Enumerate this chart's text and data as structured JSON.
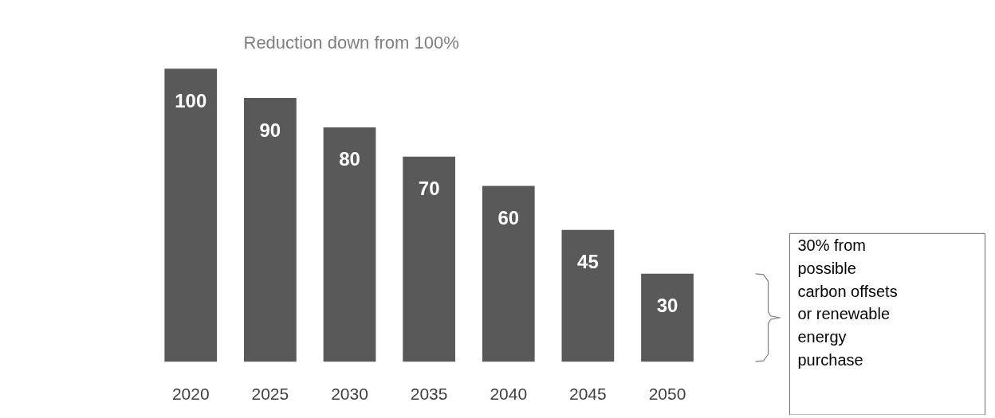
{
  "chart_data": {
    "type": "bar",
    "title": "Reduction down from 100%",
    "categories": [
      "2020",
      "2025",
      "2030",
      "2035",
      "2040",
      "2045",
      "2050"
    ],
    "values": [
      100,
      90,
      80,
      70,
      60,
      45,
      30
    ],
    "color": "#595959",
    "data_labels": true,
    "grid": false,
    "annotations": [
      "30% from possible carbon offsets or renewable energy purchase"
    ]
  }
}
